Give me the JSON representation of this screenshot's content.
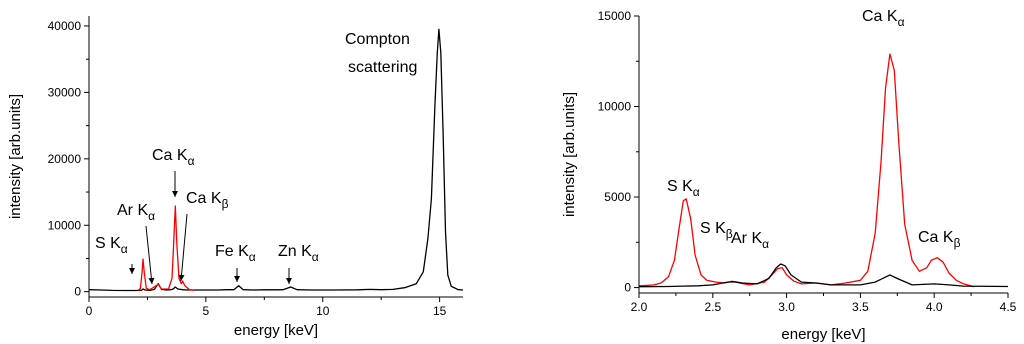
{
  "chart_data": [
    {
      "type": "line",
      "xlabel": "energy [keV]",
      "ylabel": "intensity [arb.units]",
      "xlim": [
        0,
        16
      ],
      "ylim": [
        -800,
        41500
      ],
      "xticks": [
        0,
        5,
        10,
        15
      ],
      "yticks": [
        0,
        10000,
        20000,
        30000,
        40000
      ],
      "series": [
        {
          "color": "#000000",
          "points": [
            [
              0,
              300
            ],
            [
              0.5,
              250
            ],
            [
              1.0,
              200
            ],
            [
              1.5,
              180
            ],
            [
              2.0,
              180
            ],
            [
              2.25,
              220
            ],
            [
              2.31,
              400
            ],
            [
              2.4,
              250
            ],
            [
              2.6,
              200
            ],
            [
              2.8,
              350
            ],
            [
              2.96,
              1200
            ],
            [
              3.1,
              350
            ],
            [
              3.3,
              250
            ],
            [
              3.5,
              300
            ],
            [
              3.6,
              400
            ],
            [
              3.69,
              700
            ],
            [
              3.8,
              400
            ],
            [
              4.0,
              300
            ],
            [
              4.2,
              250
            ],
            [
              4.5,
              250
            ],
            [
              5.0,
              250
            ],
            [
              5.5,
              250
            ],
            [
              5.9,
              300
            ],
            [
              6.2,
              300
            ],
            [
              6.4,
              900
            ],
            [
              6.6,
              300
            ],
            [
              7.0,
              250
            ],
            [
              7.5,
              280
            ],
            [
              8.0,
              280
            ],
            [
              8.3,
              300
            ],
            [
              8.63,
              700
            ],
            [
              8.9,
              300
            ],
            [
              9.5,
              250
            ],
            [
              10.5,
              250
            ],
            [
              11.5,
              280
            ],
            [
              12.0,
              350
            ],
            [
              12.5,
              300
            ],
            [
              13.0,
              350
            ],
            [
              13.5,
              600
            ],
            [
              14.0,
              1200
            ],
            [
              14.3,
              3000
            ],
            [
              14.5,
              8000
            ],
            [
              14.65,
              14000
            ],
            [
              14.8,
              28000
            ],
            [
              14.9,
              36000
            ],
            [
              14.97,
              39500
            ],
            [
              15.05,
              36000
            ],
            [
              15.15,
              24000
            ],
            [
              15.25,
              9000
            ],
            [
              15.35,
              2500
            ],
            [
              15.5,
              800
            ],
            [
              15.8,
              300
            ],
            [
              16,
              250
            ]
          ]
        },
        {
          "color": "#ff0000",
          "points": [
            [
              2.1,
              200
            ],
            [
              2.2,
              500
            ],
            [
              2.27,
              3000
            ],
            [
              2.31,
              4900
            ],
            [
              2.36,
              3000
            ],
            [
              2.45,
              500
            ],
            [
              2.6,
              300
            ],
            [
              2.96,
              1100
            ],
            [
              3.1,
              400
            ],
            [
              3.4,
              400
            ],
            [
              3.55,
              2000
            ],
            [
              3.62,
              7000
            ],
            [
              3.69,
              12900
            ],
            [
              3.76,
              7000
            ],
            [
              3.85,
              2000
            ],
            [
              3.95,
              1200
            ],
            [
              4.01,
              1600
            ],
            [
              4.1,
              900
            ],
            [
              4.3,
              300
            ],
            [
              4.5,
              200
            ]
          ]
        }
      ],
      "annotations": [
        {
          "main": "S K",
          "sub": "α"
        },
        {
          "main": "Ar K",
          "sub": "α"
        },
        {
          "main": "Ca K",
          "sub": "α"
        },
        {
          "main": "Ca K",
          "sub": "β"
        },
        {
          "main": "Fe K",
          "sub": "α"
        },
        {
          "main": "Zn K",
          "sub": "α"
        },
        {
          "line1": "Compton",
          "line2": "scattering"
        }
      ]
    },
    {
      "type": "line",
      "xlabel": "energy [keV]",
      "ylabel": "intensity [arb.units]",
      "xlim": [
        2.0,
        4.5
      ],
      "ylim": [
        -300,
        15000
      ],
      "xticks": [
        2.0,
        2.5,
        3.0,
        3.5,
        4.0,
        4.5
      ],
      "yticks": [
        0,
        5000,
        10000,
        15000
      ],
      "series": [
        {
          "color": "#ff0000",
          "points": [
            [
              2.0,
              100
            ],
            [
              2.05,
              120
            ],
            [
              2.1,
              150
            ],
            [
              2.15,
              250
            ],
            [
              2.2,
              600
            ],
            [
              2.24,
              1500
            ],
            [
              2.27,
              3200
            ],
            [
              2.3,
              4800
            ],
            [
              2.32,
              4900
            ],
            [
              2.35,
              3800
            ],
            [
              2.38,
              1800
            ],
            [
              2.42,
              700
            ],
            [
              2.46,
              400
            ],
            [
              2.52,
              300
            ],
            [
              2.58,
              250
            ],
            [
              2.63,
              350
            ],
            [
              2.68,
              250
            ],
            [
              2.75,
              150
            ],
            [
              2.85,
              300
            ],
            [
              2.9,
              700
            ],
            [
              2.94,
              1050
            ],
            [
              2.97,
              1100
            ],
            [
              3.0,
              700
            ],
            [
              3.05,
              350
            ],
            [
              3.1,
              200
            ],
            [
              3.2,
              250
            ],
            [
              3.3,
              150
            ],
            [
              3.4,
              250
            ],
            [
              3.5,
              400
            ],
            [
              3.55,
              900
            ],
            [
              3.6,
              3000
            ],
            [
              3.64,
              7000
            ],
            [
              3.67,
              11000
            ],
            [
              3.7,
              12900
            ],
            [
              3.73,
              12000
            ],
            [
              3.76,
              8000
            ],
            [
              3.8,
              3500
            ],
            [
              3.85,
              1500
            ],
            [
              3.9,
              900
            ],
            [
              3.95,
              1100
            ],
            [
              3.98,
              1500
            ],
            [
              4.02,
              1650
            ],
            [
              4.06,
              1400
            ],
            [
              4.1,
              800
            ],
            [
              4.15,
              400
            ],
            [
              4.2,
              200
            ],
            [
              4.27,
              50
            ]
          ]
        },
        {
          "color": "#000000",
          "points": [
            [
              2.0,
              50
            ],
            [
              2.2,
              60
            ],
            [
              2.3,
              80
            ],
            [
              2.4,
              100
            ],
            [
              2.5,
              150
            ],
            [
              2.6,
              300
            ],
            [
              2.65,
              320
            ],
            [
              2.7,
              250
            ],
            [
              2.8,
              200
            ],
            [
              2.88,
              500
            ],
            [
              2.93,
              1100
            ],
            [
              2.96,
              1300
            ],
            [
              2.99,
              1200
            ],
            [
              3.03,
              700
            ],
            [
              3.1,
              300
            ],
            [
              3.2,
              250
            ],
            [
              3.3,
              150
            ],
            [
              3.5,
              150
            ],
            [
              3.6,
              300
            ],
            [
              3.7,
              700
            ],
            [
              3.75,
              500
            ],
            [
              3.85,
              150
            ],
            [
              4.0,
              200
            ],
            [
              4.1,
              150
            ],
            [
              4.2,
              80
            ],
            [
              4.5,
              60
            ]
          ]
        }
      ],
      "annotations": [
        {
          "main": "S K",
          "sub": "α"
        },
        {
          "main": "S K",
          "sub": "β"
        },
        {
          "main": "Ar K",
          "sub": "α"
        },
        {
          "main": "Ca K",
          "sub": "α"
        },
        {
          "main": "Ca K",
          "sub": "β"
        }
      ]
    }
  ]
}
